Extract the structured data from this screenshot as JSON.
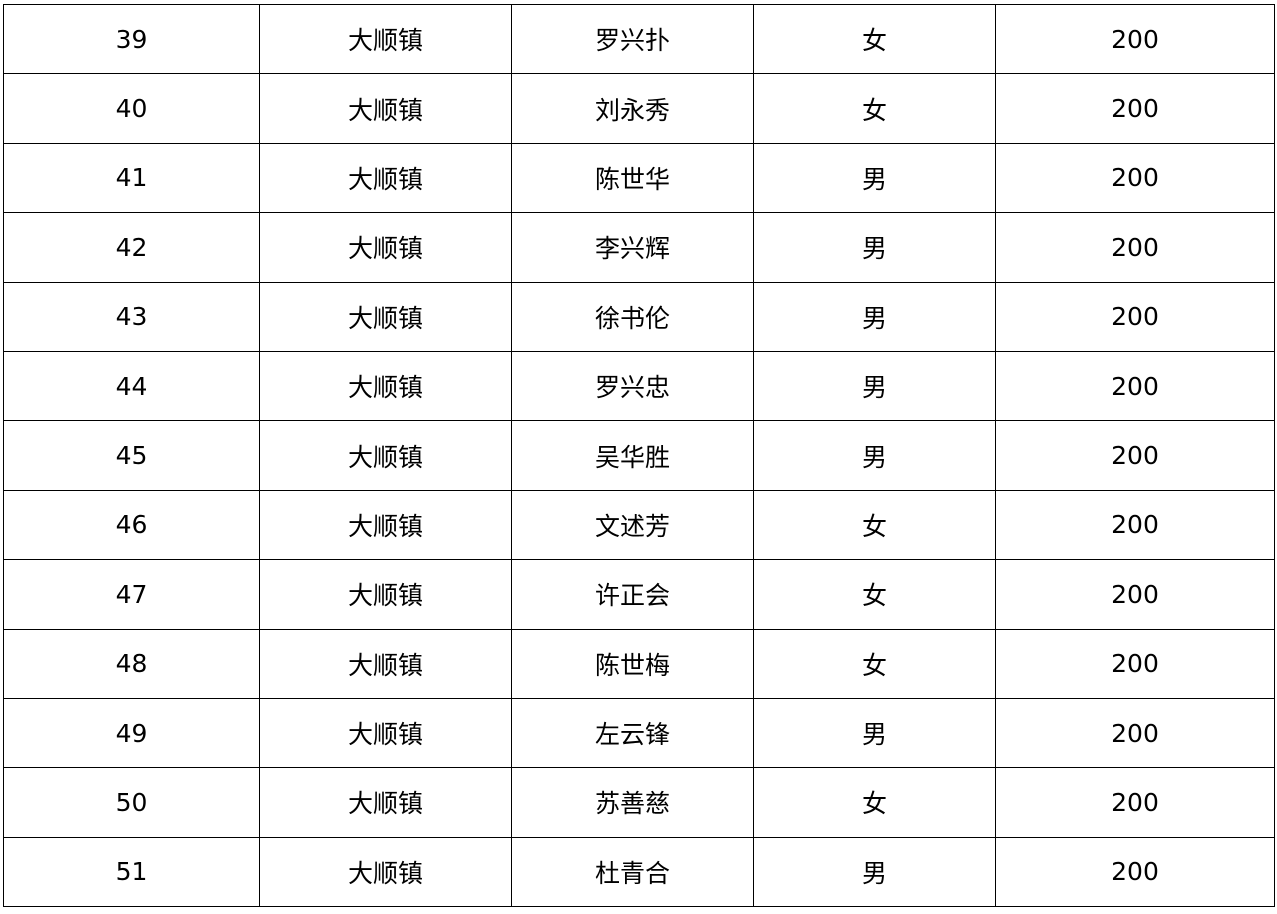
{
  "rows": [
    {
      "no": "39",
      "town": "大顺镇",
      "name": "罗兴扑",
      "gender": "女",
      "amount": "200"
    },
    {
      "no": "40",
      "town": "大顺镇",
      "name": "刘永秀",
      "gender": "女",
      "amount": "200"
    },
    {
      "no": "41",
      "town": "大顺镇",
      "name": "陈世华",
      "gender": "男",
      "amount": "200"
    },
    {
      "no": "42",
      "town": "大顺镇",
      "name": "李兴辉",
      "gender": "男",
      "amount": "200"
    },
    {
      "no": "43",
      "town": "大顺镇",
      "name": "徐书伦",
      "gender": "男",
      "amount": "200"
    },
    {
      "no": "44",
      "town": "大顺镇",
      "name": "罗兴忠",
      "gender": "男",
      "amount": "200"
    },
    {
      "no": "45",
      "town": "大顺镇",
      "name": "吴华胜",
      "gender": "男",
      "amount": "200"
    },
    {
      "no": "46",
      "town": "大顺镇",
      "name": "文述芳",
      "gender": "女",
      "amount": "200"
    },
    {
      "no": "47",
      "town": "大顺镇",
      "name": "许正会",
      "gender": "女",
      "amount": "200"
    },
    {
      "no": "48",
      "town": "大顺镇",
      "name": "陈世梅",
      "gender": "女",
      "amount": "200"
    },
    {
      "no": "49",
      "town": "大顺镇",
      "name": "左云锋",
      "gender": "男",
      "amount": "200"
    },
    {
      "no": "50",
      "town": "大顺镇",
      "name": "苏善慈",
      "gender": "女",
      "amount": "200"
    },
    {
      "no": "51",
      "town": "大顺镇",
      "name": "杜青合",
      "gender": "男",
      "amount": "200"
    }
  ]
}
